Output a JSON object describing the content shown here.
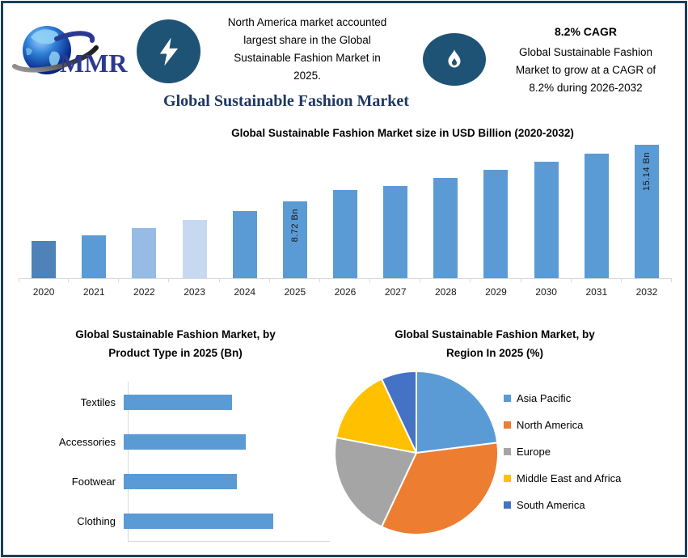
{
  "logo": {
    "text": "MMR"
  },
  "header": {
    "highlight1": {
      "icon": "lightning-bolt",
      "text": "North America market accounted\nlargest share in the Global\nSustainable Fashion Market in\n2025."
    },
    "highlight2": {
      "icon": "flame",
      "title": "8.2% CAGR",
      "text": "Global Sustainable Fashion\nMarket to grow at a CAGR of\n8.2% during 2026-2032"
    },
    "main_title": "Global Sustainable Fashion Market"
  },
  "colors": {
    "title_navy": "#1f3864",
    "icon_circle": "#1f5376",
    "bar_blue": "#5b9bd5",
    "frame_border": "#1c4059",
    "axis_gray": "#d9d9d9",
    "logo_text_blue": "#2b3990"
  },
  "chart_data": [
    {
      "id": "market_size",
      "type": "bar",
      "title": "Global Sustainable Fashion Market size in USD Billion (2020-2032)",
      "categories": [
        "2020",
        "2021",
        "2022",
        "2023",
        "2024",
        "2025",
        "2026",
        "2027",
        "2028",
        "2029",
        "2030",
        "2031",
        "2032"
      ],
      "values": [
        4.2,
        4.9,
        5.7,
        6.6,
        7.6,
        8.72,
        10.0,
        10.5,
        11.4,
        12.3,
        13.2,
        14.1,
        15.14
      ],
      "unit": "USD Billion",
      "ylim": [
        0,
        15.6
      ],
      "grid": false,
      "bar_colors": [
        "#4e82b8",
        "#5b9bd5",
        "#96bce5",
        "#c7d9f0",
        "#5b9bd5",
        "#5b9bd5",
        "#5b9bd5",
        "#5b9bd5",
        "#5b9bd5",
        "#5b9bd5",
        "#5b9bd5",
        "#5b9bd5",
        "#5b9bd5"
      ],
      "data_labels": {
        "2025": "8.72 Bn",
        "2032": "15.14 Bn"
      }
    },
    {
      "id": "product_type",
      "type": "bar",
      "orientation": "horizontal",
      "title": "Global Sustainable Fashion Market, by\nProduct Type in 2025 (Bn)",
      "categories": [
        "Textiles",
        "Accessories",
        "Footwear",
        "Clothing"
      ],
      "values": [
        2.4,
        2.7,
        2.5,
        3.3
      ],
      "unit": "Bn",
      "xlim": [
        0,
        4.4
      ],
      "grid": false,
      "color": "#5b9bd5"
    },
    {
      "id": "region_share",
      "type": "pie",
      "title": "Global Sustainable Fashion Market, by\nRegion In 2025 (%)",
      "categories": [
        "Asia Pacific",
        "North America",
        "Europe",
        "Middle East and Africa",
        "South America"
      ],
      "values": [
        23,
        34,
        21,
        15,
        7
      ],
      "unit": "%",
      "colors": [
        "#5b9bd5",
        "#ed7d31",
        "#a5a5a5",
        "#ffc000",
        "#4472c4"
      ],
      "legend_position": "right",
      "start_angle_deg": 0
    }
  ]
}
